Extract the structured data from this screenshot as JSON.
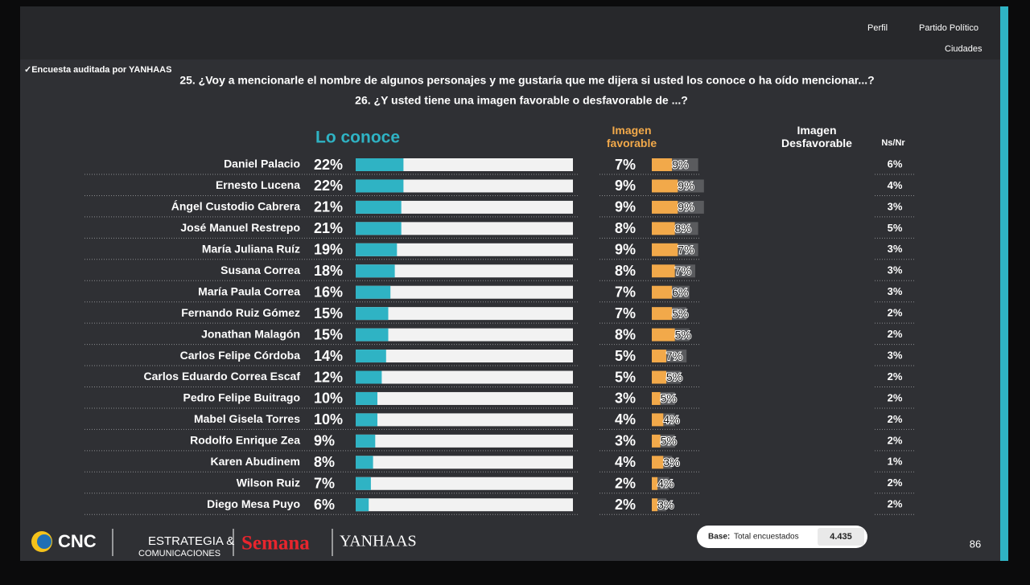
{
  "header": {
    "links": [
      "Perfil",
      "Partido Político",
      "Ciudades"
    ],
    "audit": "✓Encuesta auditada por YANHAAS"
  },
  "chart_data": {
    "type": "bar",
    "title": "25. ¿Voy a mencionarle el nombre de algunos personajes y me gustaría que me dijera si usted los conoce o ha oído mencionar...?",
    "subtitle": "26. ¿Y usted tiene una imagen favorable o desfavorable de ...?",
    "categories": [
      "Daniel Palacio",
      "Ernesto Lucena",
      "Ángel Custodio Cabrera",
      "José Manuel Restrepo",
      "María Juliana Ruíz",
      "Susana Correa",
      "María Paula Correa",
      "Fernando Ruiz Gómez",
      "Jonathan Malagón",
      "Carlos Felipe Córdoba",
      "Carlos Eduardo Correa Escaf",
      "Pedro Felipe Buitrago",
      "Mabel Gisela Torres",
      "Rodolfo Enrique Zea",
      "Karen Abudinem",
      "Wilson Ruiz",
      "Diego Mesa Puyo"
    ],
    "xlim": [
      0,
      100
    ],
    "series": [
      {
        "name": "Lo conoce",
        "color": "#2fb3c4",
        "values": [
          22,
          22,
          21,
          21,
          19,
          18,
          16,
          15,
          15,
          14,
          12,
          10,
          10,
          9,
          8,
          7,
          6
        ],
        "value_labels": [
          "22%",
          "22%",
          "21%",
          "21%",
          "19%",
          "18%",
          "16%",
          "15%",
          "15%",
          "14%",
          "12%",
          "10%",
          "10%",
          "9%",
          "8%",
          "7%",
          "6%"
        ]
      },
      {
        "name": "Imagen favorable",
        "color": "#f2a94a",
        "values": [
          7,
          9,
          9,
          8,
          9,
          8,
          7,
          7,
          8,
          5,
          5,
          3,
          4,
          3,
          4,
          2,
          2
        ],
        "value_labels": [
          "7%",
          "9%",
          "9%",
          "8%",
          "9%",
          "8%",
          "7%",
          "7%",
          "8%",
          "5%",
          "5%",
          "3%",
          "4%",
          "3%",
          "4%",
          "2%",
          "2%"
        ]
      },
      {
        "name": "Imagen Desfavorable",
        "color": "#5a5b5e",
        "values": [
          9,
          9,
          9,
          8,
          7,
          7,
          6,
          5,
          5,
          7,
          5,
          5,
          4,
          5,
          3,
          4,
          3
        ],
        "value_labels": [
          "9%",
          "9%",
          "9%",
          "8%",
          "7%",
          "7%",
          "6%",
          "5%",
          "5%",
          "7%",
          "5%",
          "5%",
          "4%",
          "5%",
          "3%",
          "4%",
          "3%"
        ]
      },
      {
        "name": "Ns/Nr",
        "color": "#ffffff",
        "values": [
          6,
          4,
          3,
          5,
          3,
          3,
          3,
          2,
          2,
          3,
          2,
          2,
          2,
          2,
          1,
          2,
          2
        ],
        "value_labels": [
          "6%",
          "4%",
          "3%",
          "5%",
          "3%",
          "3%",
          "3%",
          "2%",
          "2%",
          "3%",
          "2%",
          "2%",
          "2%",
          "2%",
          "1%",
          "2%",
          "2%"
        ]
      }
    ]
  },
  "footer": {
    "logos": [
      "CNC",
      "ESTRATEGIA &",
      "COMUNICACIONES",
      "Semana",
      "YANHAAS"
    ],
    "base_label": "Base:",
    "base_text": "Total encuestados",
    "base_value": "4.435",
    "page": "86"
  }
}
